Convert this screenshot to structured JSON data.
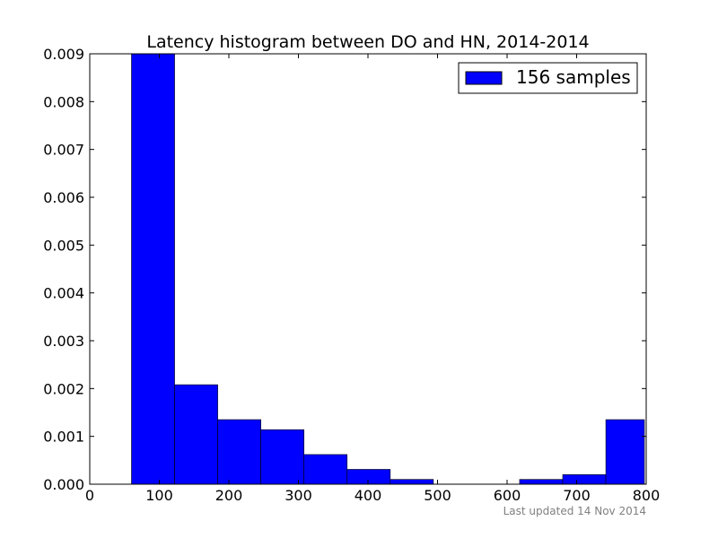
{
  "chart_data": {
    "type": "bar",
    "title": "Latency histogram between DO and HN, 2014-2014",
    "xlabel": "",
    "ylabel": "",
    "xlim": [
      0,
      800
    ],
    "ylim": [
      0,
      0.009
    ],
    "bar_color": "#0000ff",
    "grid": false,
    "legend_position": "top-right",
    "bins": [
      {
        "x0": 60,
        "x1": 122,
        "value": 0.009
      },
      {
        "x0": 122,
        "x1": 184,
        "value": 0.00208
      },
      {
        "x0": 184,
        "x1": 246,
        "value": 0.00135
      },
      {
        "x0": 246,
        "x1": 308,
        "value": 0.00114
      },
      {
        "x0": 308,
        "x1": 370,
        "value": 0.00062
      },
      {
        "x0": 370,
        "x1": 432,
        "value": 0.00031
      },
      {
        "x0": 432,
        "x1": 494,
        "value": 0.0001
      },
      {
        "x0": 494,
        "x1": 556,
        "value": 0.0
      },
      {
        "x0": 556,
        "x1": 618,
        "value": 0.0
      },
      {
        "x0": 618,
        "x1": 680,
        "value": 0.0001
      },
      {
        "x0": 680,
        "x1": 742,
        "value": 0.0002
      },
      {
        "x0": 742,
        "x1": 804,
        "value": 0.00135
      }
    ],
    "series": [
      {
        "name": "156 samples",
        "color": "#0000ff"
      }
    ],
    "x_ticks": [
      "0",
      "100",
      "200",
      "300",
      "400",
      "500",
      "600",
      "700",
      "800"
    ],
    "y_ticks": [
      "0.000",
      "0.001",
      "0.002",
      "0.003",
      "0.004",
      "0.005",
      "0.006",
      "0.007",
      "0.008",
      "0.009"
    ],
    "footer": "Last updated 14 Nov 2014"
  }
}
